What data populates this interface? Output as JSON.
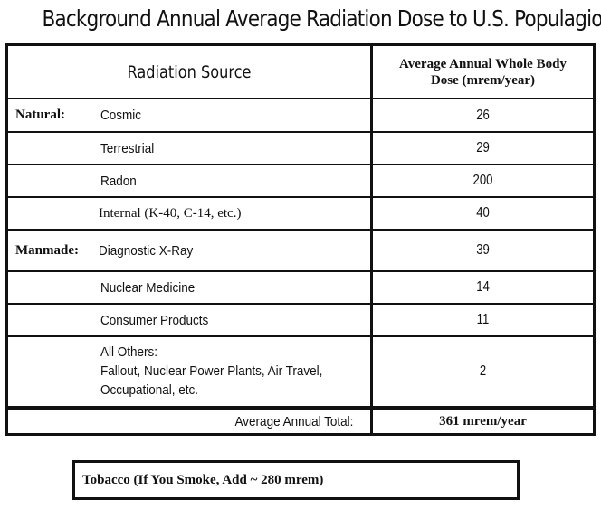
{
  "title": "Background Annual Average Radiation Dose to U.S. Populagion",
  "table": {
    "header": {
      "source": "Radiation Source",
      "dose_line1": "Average Annual Whole Body",
      "dose_line2": "Dose  (mrem/year)"
    },
    "categories": {
      "natural": "Natural:",
      "manmade": "Manmade:"
    },
    "rows": [
      {
        "source": "Cosmic",
        "value": "26"
      },
      {
        "source": "Terrestrial",
        "value": "29"
      },
      {
        "source": "Radon",
        "value": "200"
      },
      {
        "source": "Internal (K-40, C-14, etc.)",
        "value": "40"
      },
      {
        "source": "Diagnostic X-Ray",
        "value": "39"
      },
      {
        "source": "Nuclear Medicine",
        "value": "14"
      },
      {
        "source": "Consumer Products",
        "value": "11"
      },
      {
        "source_line1": "All Others:",
        "source_line2": "Fallout, Nuclear Power Plants, Air Travel,",
        "source_line3": "Occupational, etc.",
        "value": "2"
      }
    ],
    "total": {
      "label": "Average Annual Total:",
      "value": "361 mrem/year"
    }
  },
  "footnote": "Tobacco (If You Smoke, Add ~ 280 mrem)"
}
